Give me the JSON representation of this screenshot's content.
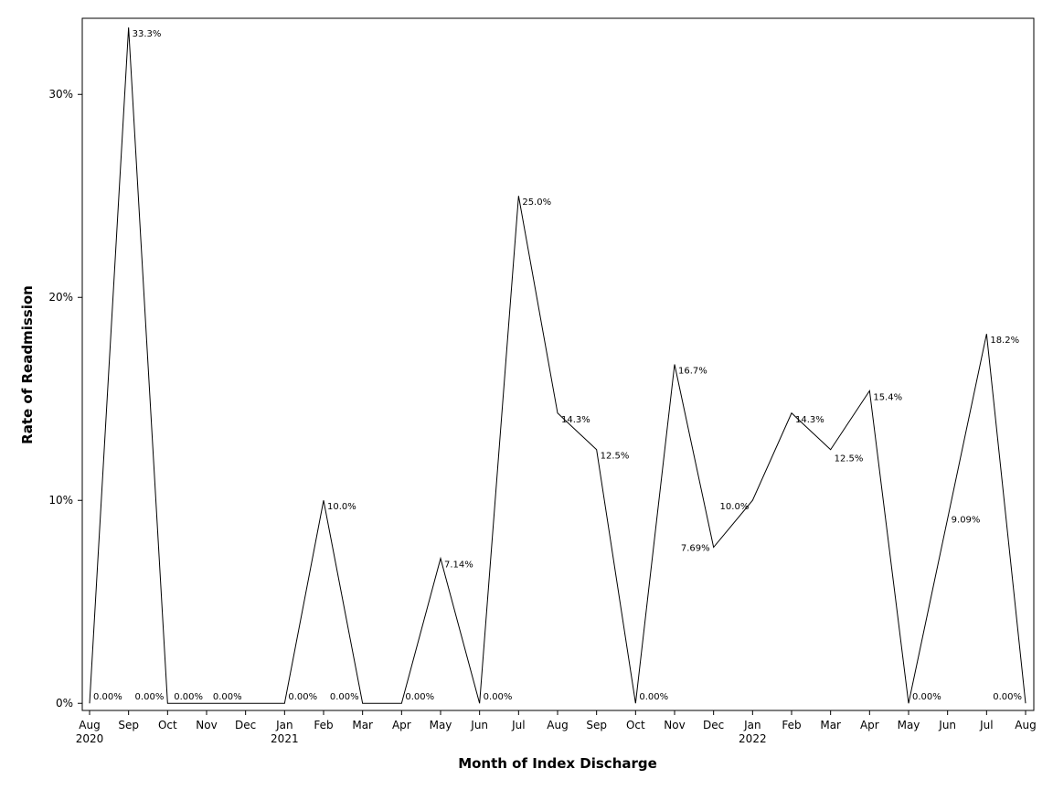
{
  "chart_data": {
    "type": "line",
    "title": "",
    "xlabel": "Month of Index Discharge",
    "ylabel": "Rate of Readmission",
    "x": [
      "2020-08",
      "2020-09",
      "2020-10",
      "2020-11",
      "2020-12",
      "2021-01",
      "2021-02",
      "2021-03",
      "2021-04",
      "2021-05",
      "2021-06",
      "2021-07",
      "2021-08",
      "2021-09",
      "2021-10",
      "2021-11",
      "2021-12",
      "2022-01",
      "2022-02",
      "2022-03",
      "2022-04",
      "2022-05",
      "2022-06",
      "2022-07",
      "2022-08"
    ],
    "x_tick_labels": [
      {
        "month": "Aug",
        "year": "2020"
      },
      {
        "month": "Sep",
        "year": ""
      },
      {
        "month": "Oct",
        "year": ""
      },
      {
        "month": "Nov",
        "year": ""
      },
      {
        "month": "Dec",
        "year": ""
      },
      {
        "month": "Jan",
        "year": "2021"
      },
      {
        "month": "Feb",
        "year": ""
      },
      {
        "month": "Mar",
        "year": ""
      },
      {
        "month": "Apr",
        "year": ""
      },
      {
        "month": "May",
        "year": ""
      },
      {
        "month": "Jun",
        "year": ""
      },
      {
        "month": "Jul",
        "year": ""
      },
      {
        "month": "Aug",
        "year": ""
      },
      {
        "month": "Sep",
        "year": ""
      },
      {
        "month": "Oct",
        "year": ""
      },
      {
        "month": "Nov",
        "year": ""
      },
      {
        "month": "Dec",
        "year": ""
      },
      {
        "month": "Jan",
        "year": "2022"
      },
      {
        "month": "Feb",
        "year": ""
      },
      {
        "month": "Mar",
        "year": ""
      },
      {
        "month": "Apr",
        "year": ""
      },
      {
        "month": "May",
        "year": ""
      },
      {
        "month": "Jun",
        "year": ""
      },
      {
        "month": "Jul",
        "year": ""
      },
      {
        "month": "Aug",
        "year": ""
      }
    ],
    "series": [
      {
        "values": [
          0,
          33.3,
          0,
          0,
          0,
          0,
          10.0,
          0,
          0,
          7.14,
          0,
          25.0,
          14.3,
          12.5,
          0,
          16.7,
          7.69,
          10.0,
          14.3,
          12.5,
          15.4,
          0,
          9.09,
          18.2,
          0
        ],
        "data_labels": [
          "0.00%",
          "33.3%",
          "0.00%",
          "0.00%",
          "0.00%",
          "0.00%",
          "10.0%",
          "0.00%",
          "0.00%",
          "7.14%",
          "0.00%",
          "25.0%",
          "14.3%",
          "12.5%",
          "0.00%",
          "16.7%",
          "7.69%",
          "10.0%",
          "14.3%",
          "12.5%",
          "15.4%",
          "0.00%",
          "9.09%",
          "18.2%",
          "0.00%"
        ],
        "label_anchor": [
          "right",
          "right",
          "left",
          "left",
          "left",
          "right",
          "right",
          "left",
          "right",
          "right",
          "right",
          "right",
          "right",
          "right",
          "right",
          "right",
          "left",
          "left",
          "right",
          "right",
          "right",
          "right",
          "right",
          "right",
          "left"
        ],
        "label_vpos": [
          "bottom",
          "top",
          "bottom",
          "bottom",
          "bottom",
          "bottom",
          "top",
          "bottom",
          "bottom",
          "top",
          "bottom",
          "top",
          "top",
          "top",
          "bottom",
          "top",
          "mid",
          "top",
          "top",
          "below",
          "top",
          "bottom",
          "mid",
          "top",
          "bottom"
        ],
        "color": "#000000"
      }
    ],
    "y_ticks": [
      0,
      10,
      20,
      30
    ],
    "y_tick_labels": [
      "0%",
      "10%",
      "20%",
      "30%"
    ],
    "ylim": [
      -0.35,
      33.75
    ],
    "grid": false,
    "legend": "none"
  }
}
